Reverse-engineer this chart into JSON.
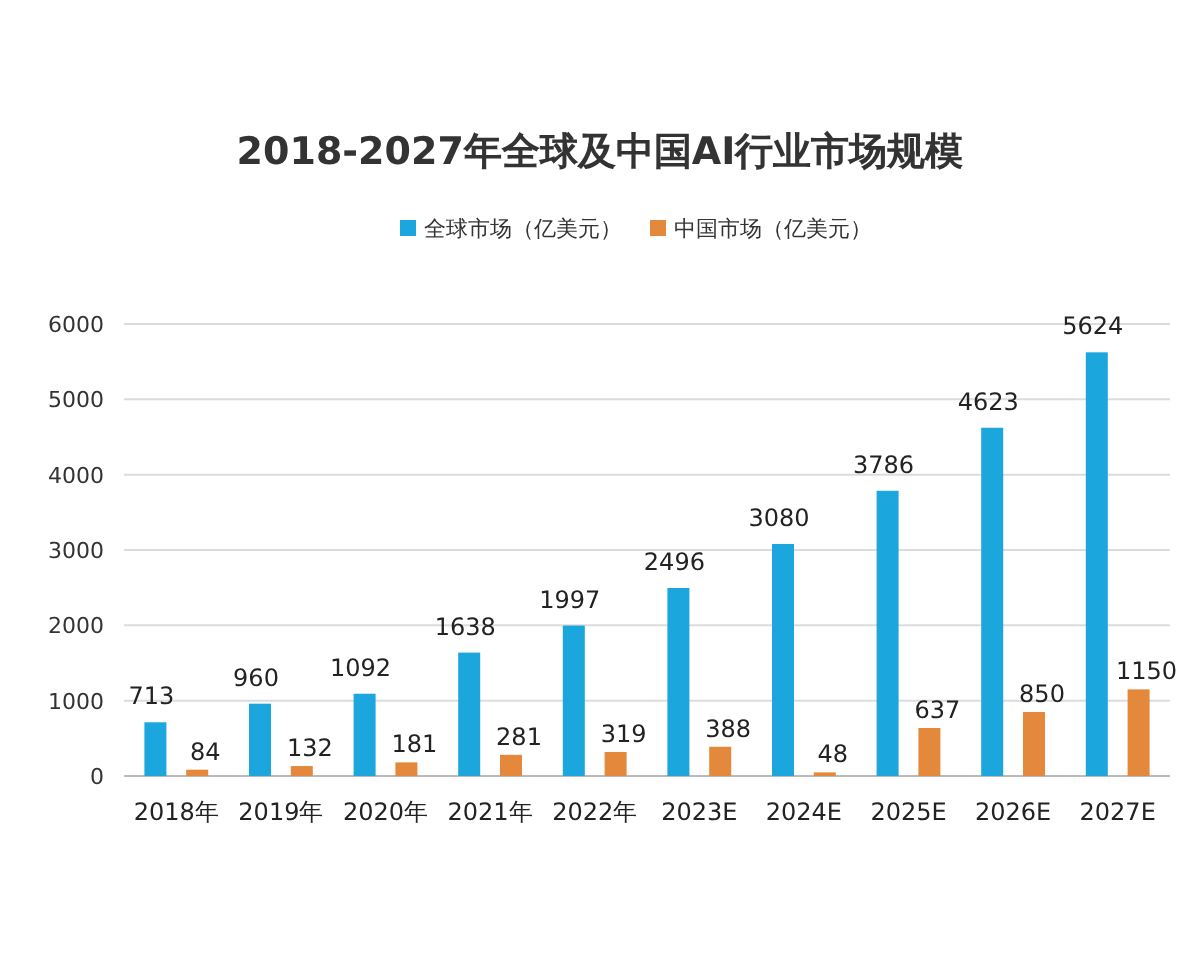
{
  "chart_data": {
    "type": "bar",
    "title": "2018-2027年全球及中国AI行业市场规模",
    "categories": [
      "2018年",
      "2019年",
      "2020年",
      "2021年",
      "2022年",
      "2023E",
      "2024E",
      "2025E",
      "2026E",
      "2027E"
    ],
    "series": [
      {
        "name": "全球市场（亿美元）",
        "color": "#1ba6de",
        "values": [
          713,
          960,
          1092,
          1638,
          1997,
          2496,
          3080,
          3786,
          4623,
          5624
        ]
      },
      {
        "name": "中国市场（亿美元）",
        "color": "#e4893c",
        "values": [
          84,
          132,
          181,
          281,
          319,
          388,
          48,
          637,
          850,
          1150
        ]
      }
    ],
    "ylim": [
      0,
      6000
    ],
    "yticks": [
      0,
      1000,
      2000,
      3000,
      4000,
      5000,
      6000
    ],
    "grid": "y",
    "legend": "top",
    "data_labels": true
  }
}
